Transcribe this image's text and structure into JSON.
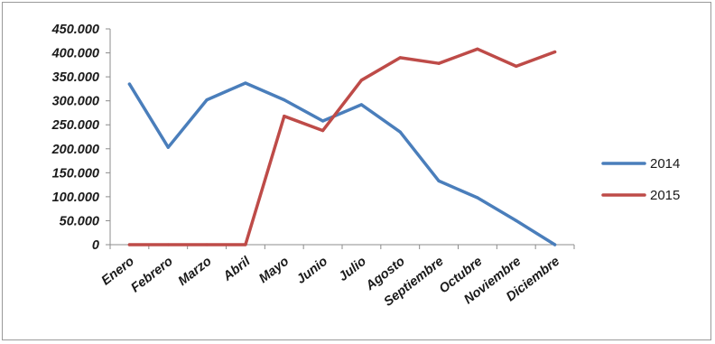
{
  "chart_data": {
    "type": "line",
    "categories": [
      "Enero",
      "Febrero",
      "Marzo",
      "Abril",
      "Mayo",
      "Junio",
      "Julio",
      "Agosto",
      "Septiembre",
      "Octubre",
      "Noviembre",
      "Diciembre"
    ],
    "series": [
      {
        "name": "2014",
        "color": "#4a7ebb",
        "values": [
          335000,
          203000,
          302000,
          337000,
          302000,
          258000,
          292000,
          235000,
          133000,
          98000,
          50000,
          0
        ]
      },
      {
        "name": "2015",
        "color": "#be4b48",
        "values": [
          0,
          0,
          0,
          0,
          268000,
          238000,
          343000,
          390000,
          378000,
          408000,
          372000,
          402000
        ]
      }
    ],
    "ylim": [
      0,
      450000
    ],
    "yticks": [
      "0",
      "50.000",
      "100.000",
      "150.000",
      "200.000",
      "250.000",
      "300.000",
      "350.000",
      "400.000",
      "450.000"
    ],
    "ytick_values": [
      0,
      50000,
      100000,
      150000,
      200000,
      250000,
      300000,
      350000,
      400000,
      450000
    ],
    "grid": false,
    "legend_position": "right",
    "title": "",
    "xlabel": "",
    "ylabel": ""
  }
}
